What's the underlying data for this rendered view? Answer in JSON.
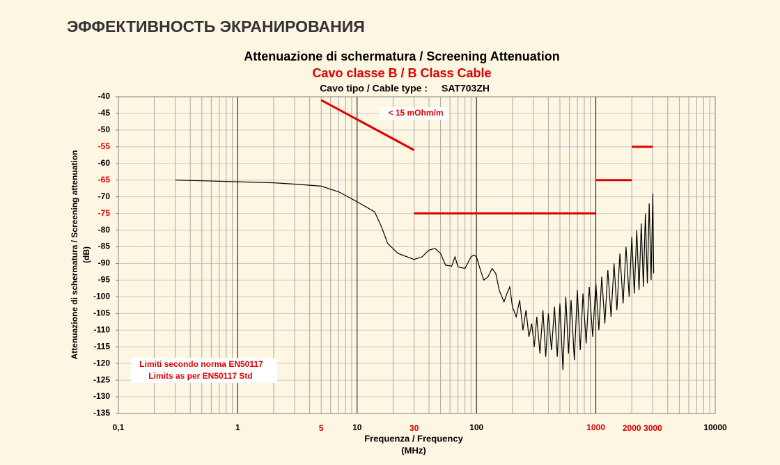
{
  "page_title": "ЭФФЕКТИВНОСТЬ ЭКРАНИРОВАНИЯ",
  "chart_data": {
    "type": "line",
    "title": "Attenuazione di schermatura / Screening Attenuation",
    "subtitle": "Cavo classe B / B Class Cable",
    "cable_label": "Cavo tipo / Cable type :",
    "cable_type": "SAT703ZH",
    "ylabel": "Attenuazione di schermatura / Screening attenuation",
    "ylabel_unit": "(dB)",
    "xlabel": "Frequenza / Frequency",
    "xlabel_unit": "(MHz)",
    "xscale": "log",
    "xlim": [
      0.1,
      10000
    ],
    "ylim": [
      -135,
      -40
    ],
    "xticks": [
      {
        "value": 0.1,
        "label": "0,1"
      },
      1,
      10,
      100,
      1000,
      10000
    ],
    "xtick_colors": [
      "#000000",
      "#000000",
      "#000000",
      "#000000",
      "#dd0000",
      "#000000"
    ],
    "limit_xticks": [
      5,
      30,
      2000,
      3000
    ],
    "limit_color": "#dd0000",
    "yticks": [
      -135,
      -130,
      -125,
      -120,
      -115,
      -110,
      -105,
      -100,
      -95,
      -90,
      -85,
      -80,
      -75,
      -70,
      -65,
      -60,
      -55,
      -50,
      -45,
      -40
    ],
    "ytick_colors": [
      "#000000",
      "#000000",
      "#000000",
      "#000000",
      "#000000",
      "#000000",
      "#000000",
      "#000000",
      "#000000",
      "#000000",
      "#000000",
      "#000000",
      "#dd0000",
      "#000000",
      "#dd0000",
      "#000000",
      "#dd0000",
      "#000000",
      "#000000",
      "#000000"
    ],
    "grid": true,
    "minor_grid": true,
    "limit_segments": [
      {
        "x": [
          5,
          30
        ],
        "values": [
          -41,
          -56
        ]
      },
      {
        "x": [
          30,
          1000
        ],
        "values": [
          -75,
          -75
        ]
      },
      {
        "x": [
          1000,
          2000
        ],
        "values": [
          -65,
          -65
        ]
      },
      {
        "x": [
          2000,
          3000
        ],
        "values": [
          -55,
          -55
        ]
      }
    ],
    "annotations": [
      "< 15 mOhm/m",
      "Limiti secondo norma EN50117",
      "Limits as per EN50117 Std"
    ],
    "series": [
      {
        "name": "SAT703ZH",
        "color": "#000000",
        "x": [
          0.3,
          0.5,
          1,
          2,
          3,
          5,
          7,
          10,
          14,
          16,
          18,
          22,
          30,
          35,
          40,
          45,
          50,
          55,
          62,
          66,
          70,
          80,
          90,
          95,
          100,
          108,
          115,
          125,
          135,
          145,
          155,
          170,
          180,
          190,
          200,
          215,
          230,
          245,
          260,
          275,
          290,
          305,
          320,
          340,
          360,
          380,
          400,
          425,
          450,
          475,
          500,
          530,
          560,
          590,
          620,
          660,
          700,
          740,
          780,
          830,
          880,
          940,
          1000,
          1060,
          1120,
          1190,
          1260,
          1340,
          1420,
          1500,
          1590,
          1690,
          1790,
          1900,
          2000,
          2100,
          2200,
          2300,
          2400,
          2500,
          2600,
          2700,
          2800,
          2900,
          3000,
          3050
        ],
        "values": [
          -65,
          -65.2,
          -65.5,
          -65.8,
          -66.2,
          -66.8,
          -68.5,
          -71.5,
          -74.5,
          -79,
          -84,
          -87,
          -88.8,
          -88,
          -86,
          -85.5,
          -87,
          -90.5,
          -90.8,
          -88,
          -91,
          -91.5,
          -88,
          -87.5,
          -88,
          -92,
          -95,
          -94,
          -91.5,
          -93,
          -98,
          -101.5,
          -99,
          -97,
          -103,
          -106,
          -101,
          -110,
          -104,
          -112,
          -108,
          -115,
          -106,
          -117,
          -104,
          -118,
          -105,
          -116,
          -103,
          -118,
          -102,
          -122,
          -100,
          -117,
          -101,
          -119,
          -98,
          -116,
          -99,
          -114,
          -97,
          -112,
          -96,
          -110,
          -94,
          -108,
          -92,
          -106,
          -90,
          -104,
          -87,
          -102,
          -85,
          -100,
          -82,
          -99,
          -80,
          -98,
          -78,
          -97,
          -75,
          -96,
          -72,
          -95,
          -69,
          -93
        ]
      }
    ]
  }
}
